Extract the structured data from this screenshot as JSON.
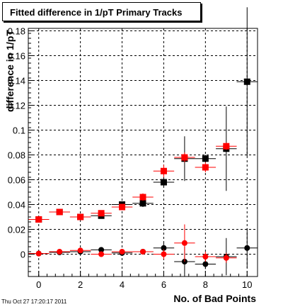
{
  "title": "Fitted difference in 1/pT Primary Tracks",
  "timestamp": "Thu Oct 27 17:20:17 2011",
  "chart_data": {
    "type": "scatter",
    "title": "Fitted difference in 1/pT Primary Tracks",
    "xlabel": "No. of Bad Points",
    "ylabel": "difference in 1/pT",
    "xlim": [
      -0.5,
      10.5
    ],
    "ylim": [
      -0.018,
      0.182
    ],
    "xticks": [
      0,
      2,
      4,
      6,
      8,
      10
    ],
    "xtick_labels": [
      "0",
      "2",
      "4",
      "6",
      "8",
      "10"
    ],
    "yticks": [
      0,
      0.02,
      0.04,
      0.06,
      0.08,
      0.1,
      0.12,
      0.14,
      0.16,
      0.18
    ],
    "ytick_labels": [
      "0",
      "0.02",
      "0.04",
      "0.06",
      "0.08",
      "0.1",
      "0.12",
      "0.14",
      "0.16",
      "0.18"
    ],
    "grid": true,
    "series": [
      {
        "color": "#000000",
        "marker": "square",
        "x": [
          0,
          1,
          2,
          3,
          4,
          5,
          6,
          7,
          8,
          9,
          10
        ],
        "y": [
          0.028,
          0.034,
          0.03,
          0.031,
          0.04,
          0.041,
          0.058,
          0.077,
          0.077,
          0.085,
          0.139
        ],
        "yerr": [
          0.001,
          0.001,
          0.001,
          0.0015,
          0.002,
          0.003,
          0.004,
          0.018,
          0.003,
          0.034,
          0.06
        ]
      },
      {
        "color": "#ff0000",
        "marker": "square",
        "x": [
          0,
          1,
          2,
          3,
          4,
          5,
          6,
          7,
          8,
          9,
          10
        ],
        "y": [
          0.028,
          0.034,
          0.03,
          0.033,
          0.038,
          0.046,
          0.067,
          0.078,
          0.07,
          0.087,
          null
        ],
        "yerr": [
          0.001,
          0.001,
          0.001,
          0.0015,
          0.002,
          0.003,
          0.005,
          0.004,
          0.004,
          0.003,
          null
        ]
      },
      {
        "color": "#000000",
        "marker": "circle",
        "x": [
          0,
          1,
          2,
          3,
          4,
          5,
          6,
          7,
          8,
          9,
          10
        ],
        "y": [
          0.0005,
          0.0015,
          0.002,
          0.0035,
          0.001,
          0.002,
          0.005,
          -0.006,
          -0.008,
          -0.002,
          0.005
        ],
        "yerr": [
          0.0005,
          0.0005,
          0.0008,
          0.001,
          0.001,
          0.002,
          0.004,
          0.012,
          0.004,
          0.015,
          0.016
        ]
      },
      {
        "color": "#ff0000",
        "marker": "circle",
        "x": [
          0,
          1,
          2,
          3,
          4,
          5,
          6,
          7,
          8,
          9
        ],
        "y": [
          0.0005,
          0.002,
          0.003,
          0.0,
          0.002,
          0.002,
          0.0,
          0.009,
          -0.002,
          -0.003
        ],
        "yerr": [
          0.0005,
          0.0005,
          0.0008,
          0.001,
          0.001,
          0.002,
          0.004,
          0.015,
          0.004,
          0.004
        ]
      }
    ]
  }
}
